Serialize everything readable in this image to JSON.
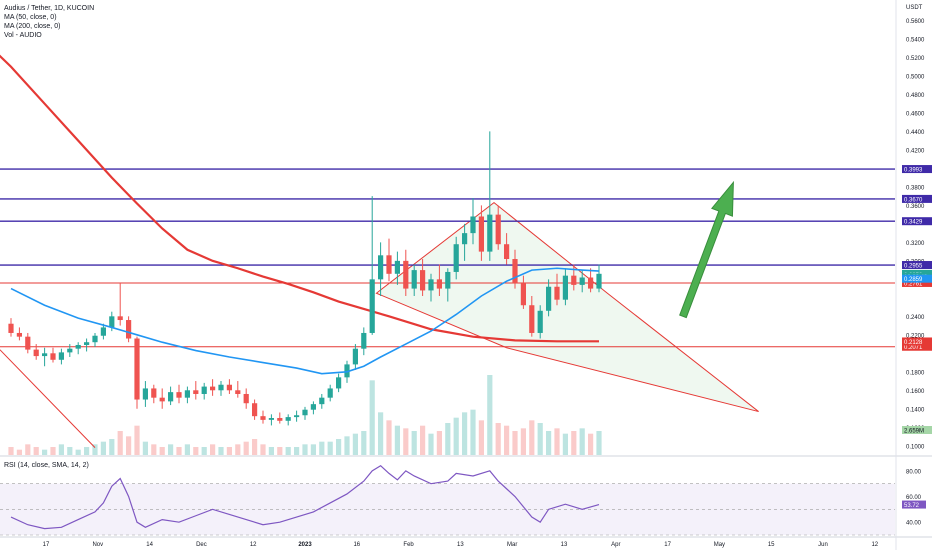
{
  "legend": {
    "title": "Audius / Tether, 1D, KUCOIN",
    "ma50": "MA (50, close, 0)",
    "ma200": "MA (200, close, 0)",
    "vol": "Vol - AUDIO"
  },
  "rsi_legend": "RSI (14, close, SMA, 14, 2)",
  "colors": {
    "up": "#26a69a",
    "down": "#ef5350",
    "ma50": "#2196f3",
    "ma200": "#e53935",
    "hline_purple": "#3f2aa8",
    "hline_red": "#e53935",
    "wedge_fill": "#e8f5e9",
    "arrow": "#4caf50",
    "rsi_line": "#7e57c2",
    "rsi_band": "#ede7f6"
  },
  "chart_data": [
    {
      "type": "candlestick",
      "title": "Audius / Tether, 1D, KUCOIN",
      "y_unit": "USDT",
      "yaxis_ticks": [
        "0.5600",
        "0.5400",
        "0.5200",
        "0.5000",
        "0.4800",
        "0.4600",
        "0.4400",
        "0.4200",
        "0.3800",
        "0.3600",
        "0.3200",
        "0.3000",
        "0.2400",
        "0.2200",
        "0.1800",
        "0.1600",
        "0.1400",
        "0.1200",
        "0.1000"
      ],
      "ylim": [
        0.09,
        0.58
      ],
      "xaxis_ticks": [
        "17",
        "Nov",
        "14",
        "Dec",
        "12",
        "2023",
        "16",
        "Feb",
        "13",
        "Mar",
        "13",
        "Apr",
        "17",
        "May",
        "15",
        "Jun",
        "12"
      ],
      "horizontal_levels": [
        {
          "value": 0.3993,
          "label": "0.3993",
          "color": "#3f2aa8"
        },
        {
          "value": 0.367,
          "label": "0.3670",
          "color": "#3f2aa8"
        },
        {
          "value": 0.3429,
          "label": "0.3429",
          "color": "#3f2aa8"
        },
        {
          "value": 0.2955,
          "label": "0.2955",
          "color": "#3f2aa8"
        },
        {
          "value": 0.2761,
          "label": "0.2761",
          "color": "#e53935"
        },
        {
          "value": 0.2071,
          "label": "0.2071",
          "color": "#e53935"
        }
      ],
      "price_labels": [
        {
          "value": 0.2859,
          "label": "0.2859",
          "color": "#26a69a"
        },
        {
          "value": 0.2833,
          "label": "10:22:43",
          "color": "#26a69a"
        },
        {
          "value": 0.2807,
          "label": "0.2859",
          "color": "#2196f3"
        },
        {
          "value": 0.2128,
          "label": "0.2128",
          "color": "#e53935"
        }
      ],
      "volume_label": "2.659M",
      "ohlc": [
        {
          "x": 0,
          "o": 0.232,
          "h": 0.238,
          "l": 0.218,
          "c": 0.222
        },
        {
          "x": 1,
          "o": 0.222,
          "h": 0.228,
          "l": 0.214,
          "c": 0.218
        },
        {
          "x": 2,
          "o": 0.218,
          "h": 0.222,
          "l": 0.2,
          "c": 0.204
        },
        {
          "x": 3,
          "o": 0.204,
          "h": 0.21,
          "l": 0.193,
          "c": 0.197
        },
        {
          "x": 4,
          "o": 0.197,
          "h": 0.206,
          "l": 0.186,
          "c": 0.2
        },
        {
          "x": 5,
          "o": 0.2,
          "h": 0.206,
          "l": 0.19,
          "c": 0.193
        },
        {
          "x": 6,
          "o": 0.193,
          "h": 0.205,
          "l": 0.188,
          "c": 0.201
        },
        {
          "x": 7,
          "o": 0.201,
          "h": 0.21,
          "l": 0.196,
          "c": 0.205
        },
        {
          "x": 8,
          "o": 0.205,
          "h": 0.212,
          "l": 0.199,
          "c": 0.209
        },
        {
          "x": 9,
          "o": 0.209,
          "h": 0.216,
          "l": 0.202,
          "c": 0.212
        },
        {
          "x": 10,
          "o": 0.212,
          "h": 0.222,
          "l": 0.207,
          "c": 0.219
        },
        {
          "x": 11,
          "o": 0.219,
          "h": 0.232,
          "l": 0.215,
          "c": 0.228
        },
        {
          "x": 12,
          "o": 0.228,
          "h": 0.245,
          "l": 0.224,
          "c": 0.24
        },
        {
          "x": 13,
          "o": 0.24,
          "h": 0.276,
          "l": 0.23,
          "c": 0.236
        },
        {
          "x": 14,
          "o": 0.236,
          "h": 0.24,
          "l": 0.212,
          "c": 0.216
        },
        {
          "x": 15,
          "o": 0.216,
          "h": 0.218,
          "l": 0.14,
          "c": 0.15
        },
        {
          "x": 16,
          "o": 0.15,
          "h": 0.17,
          "l": 0.142,
          "c": 0.162
        },
        {
          "x": 17,
          "o": 0.162,
          "h": 0.166,
          "l": 0.146,
          "c": 0.152
        },
        {
          "x": 18,
          "o": 0.152,
          "h": 0.162,
          "l": 0.14,
          "c": 0.148
        },
        {
          "x": 19,
          "o": 0.148,
          "h": 0.164,
          "l": 0.144,
          "c": 0.158
        },
        {
          "x": 20,
          "o": 0.158,
          "h": 0.166,
          "l": 0.146,
          "c": 0.152
        },
        {
          "x": 21,
          "o": 0.152,
          "h": 0.164,
          "l": 0.146,
          "c": 0.16
        },
        {
          "x": 22,
          "o": 0.16,
          "h": 0.17,
          "l": 0.15,
          "c": 0.156
        },
        {
          "x": 23,
          "o": 0.156,
          "h": 0.168,
          "l": 0.15,
          "c": 0.164
        },
        {
          "x": 24,
          "o": 0.164,
          "h": 0.172,
          "l": 0.154,
          "c": 0.16
        },
        {
          "x": 25,
          "o": 0.16,
          "h": 0.17,
          "l": 0.154,
          "c": 0.166
        },
        {
          "x": 26,
          "o": 0.166,
          "h": 0.172,
          "l": 0.156,
          "c": 0.16
        },
        {
          "x": 27,
          "o": 0.16,
          "h": 0.17,
          "l": 0.152,
          "c": 0.156
        },
        {
          "x": 28,
          "o": 0.156,
          "h": 0.162,
          "l": 0.14,
          "c": 0.146
        },
        {
          "x": 29,
          "o": 0.146,
          "h": 0.15,
          "l": 0.128,
          "c": 0.132
        },
        {
          "x": 30,
          "o": 0.132,
          "h": 0.138,
          "l": 0.124,
          "c": 0.128
        },
        {
          "x": 31,
          "o": 0.128,
          "h": 0.134,
          "l": 0.122,
          "c": 0.13
        },
        {
          "x": 32,
          "o": 0.13,
          "h": 0.136,
          "l": 0.124,
          "c": 0.127
        },
        {
          "x": 33,
          "o": 0.127,
          "h": 0.134,
          "l": 0.122,
          "c": 0.131
        },
        {
          "x": 34,
          "o": 0.131,
          "h": 0.138,
          "l": 0.126,
          "c": 0.133
        },
        {
          "x": 35,
          "o": 0.133,
          "h": 0.142,
          "l": 0.128,
          "c": 0.139
        },
        {
          "x": 36,
          "o": 0.139,
          "h": 0.148,
          "l": 0.134,
          "c": 0.145
        },
        {
          "x": 37,
          "o": 0.145,
          "h": 0.156,
          "l": 0.14,
          "c": 0.152
        },
        {
          "x": 38,
          "o": 0.152,
          "h": 0.166,
          "l": 0.148,
          "c": 0.162
        },
        {
          "x": 39,
          "o": 0.162,
          "h": 0.178,
          "l": 0.158,
          "c": 0.174
        },
        {
          "x": 40,
          "o": 0.174,
          "h": 0.192,
          "l": 0.168,
          "c": 0.188
        },
        {
          "x": 41,
          "o": 0.188,
          "h": 0.21,
          "l": 0.182,
          "c": 0.205
        },
        {
          "x": 42,
          "o": 0.205,
          "h": 0.228,
          "l": 0.198,
          "c": 0.222
        },
        {
          "x": 43,
          "o": 0.222,
          "h": 0.37,
          "l": 0.22,
          "c": 0.28
        },
        {
          "x": 44,
          "o": 0.28,
          "h": 0.32,
          "l": 0.262,
          "c": 0.306
        },
        {
          "x": 45,
          "o": 0.306,
          "h": 0.324,
          "l": 0.278,
          "c": 0.286
        },
        {
          "x": 46,
          "o": 0.286,
          "h": 0.31,
          "l": 0.274,
          "c": 0.3
        },
        {
          "x": 47,
          "o": 0.3,
          "h": 0.312,
          "l": 0.262,
          "c": 0.27
        },
        {
          "x": 48,
          "o": 0.27,
          "h": 0.296,
          "l": 0.262,
          "c": 0.29
        },
        {
          "x": 49,
          "o": 0.29,
          "h": 0.302,
          "l": 0.262,
          "c": 0.268
        },
        {
          "x": 50,
          "o": 0.268,
          "h": 0.286,
          "l": 0.256,
          "c": 0.28
        },
        {
          "x": 51,
          "o": 0.28,
          "h": 0.296,
          "l": 0.262,
          "c": 0.27
        },
        {
          "x": 52,
          "o": 0.27,
          "h": 0.292,
          "l": 0.256,
          "c": 0.288
        },
        {
          "x": 53,
          "o": 0.288,
          "h": 0.326,
          "l": 0.28,
          "c": 0.318
        },
        {
          "x": 54,
          "o": 0.318,
          "h": 0.34,
          "l": 0.3,
          "c": 0.33
        },
        {
          "x": 55,
          "o": 0.33,
          "h": 0.368,
          "l": 0.318,
          "c": 0.348
        },
        {
          "x": 56,
          "o": 0.348,
          "h": 0.36,
          "l": 0.3,
          "c": 0.31
        },
        {
          "x": 57,
          "o": 0.31,
          "h": 0.44,
          "l": 0.3,
          "c": 0.35
        },
        {
          "x": 58,
          "o": 0.35,
          "h": 0.36,
          "l": 0.312,
          "c": 0.318
        },
        {
          "x": 59,
          "o": 0.318,
          "h": 0.33,
          "l": 0.296,
          "c": 0.302
        },
        {
          "x": 60,
          "o": 0.302,
          "h": 0.312,
          "l": 0.27,
          "c": 0.276
        },
        {
          "x": 61,
          "o": 0.276,
          "h": 0.284,
          "l": 0.248,
          "c": 0.252
        },
        {
          "x": 62,
          "o": 0.252,
          "h": 0.262,
          "l": 0.218,
          "c": 0.222
        },
        {
          "x": 63,
          "o": 0.222,
          "h": 0.252,
          "l": 0.216,
          "c": 0.246
        },
        {
          "x": 64,
          "o": 0.246,
          "h": 0.28,
          "l": 0.24,
          "c": 0.272
        },
        {
          "x": 65,
          "o": 0.272,
          "h": 0.286,
          "l": 0.252,
          "c": 0.258
        },
        {
          "x": 66,
          "o": 0.258,
          "h": 0.292,
          "l": 0.252,
          "c": 0.284
        },
        {
          "x": 67,
          "o": 0.284,
          "h": 0.296,
          "l": 0.268,
          "c": 0.274
        },
        {
          "x": 68,
          "o": 0.274,
          "h": 0.29,
          "l": 0.266,
          "c": 0.282
        },
        {
          "x": 69,
          "o": 0.282,
          "h": 0.292,
          "l": 0.266,
          "c": 0.27
        },
        {
          "x": 70,
          "o": 0.27,
          "h": 0.296,
          "l": 0.266,
          "c": 0.286
        }
      ],
      "ma50": [
        [
          0,
          0.27
        ],
        [
          4,
          0.252
        ],
        [
          8,
          0.238
        ],
        [
          12,
          0.228
        ],
        [
          15,
          0.22
        ],
        [
          18,
          0.212
        ],
        [
          22,
          0.203
        ],
        [
          26,
          0.196
        ],
        [
          30,
          0.19
        ],
        [
          34,
          0.184
        ],
        [
          37,
          0.178
        ],
        [
          40,
          0.18
        ],
        [
          42,
          0.186
        ],
        [
          44,
          0.196
        ],
        [
          47,
          0.21
        ],
        [
          50,
          0.224
        ],
        [
          53,
          0.242
        ],
        [
          56,
          0.262
        ],
        [
          59,
          0.278
        ],
        [
          62,
          0.29
        ],
        [
          65,
          0.292
        ],
        [
          68,
          0.29
        ],
        [
          70,
          0.289
        ]
      ],
      "ma200": [
        [
          -4,
          0.545
        ],
        [
          0,
          0.51
        ],
        [
          4,
          0.47
        ],
        [
          8,
          0.43
        ],
        [
          12,
          0.39
        ],
        [
          15,
          0.362
        ],
        [
          18,
          0.335
        ],
        [
          21,
          0.312
        ],
        [
          24,
          0.3
        ],
        [
          27,
          0.292
        ],
        [
          30,
          0.283
        ],
        [
          33,
          0.275
        ],
        [
          36,
          0.266
        ],
        [
          39,
          0.256
        ],
        [
          42,
          0.248
        ],
        [
          45,
          0.24
        ],
        [
          50,
          0.226
        ],
        [
          55,
          0.218
        ],
        [
          60,
          0.214
        ],
        [
          65,
          0.213
        ],
        [
          70,
          0.213
        ]
      ],
      "volume": [
        3,
        2,
        4,
        3,
        2,
        3,
        4,
        3,
        2,
        3,
        4,
        5,
        6,
        9,
        7,
        11,
        5,
        4,
        3,
        4,
        3,
        4,
        3,
        3,
        4,
        3,
        3,
        4,
        5,
        6,
        4,
        3,
        3,
        3,
        3,
        4,
        4,
        5,
        5,
        6,
        7,
        8,
        9,
        28,
        16,
        13,
        11,
        10,
        9,
        11,
        8,
        9,
        12,
        14,
        16,
        17,
        13,
        30,
        12,
        11,
        9,
        10,
        13,
        12,
        9,
        10,
        8,
        9,
        10,
        8,
        9
      ],
      "annotations": {
        "wedge": {
          "points": [
            [
              43.5,
              0.265
            ],
            [
              57.5,
              0.363
            ],
            [
              71,
              0.265
            ],
            [
              89,
              0.137
            ],
            [
              59,
              0.206
            ],
            [
              43.5,
              0.265
            ]
          ]
        },
        "falling_line": {
          "from": [
            -10,
            0.285
          ],
          "to": [
            10,
            0.098
          ]
        },
        "arrow": {
          "from": [
            80,
            0.24
          ],
          "to": [
            86,
            0.385
          ]
        }
      }
    },
    {
      "type": "line",
      "title": "RSI (14, close, SMA, 14, 2)",
      "yaxis_ticks": [
        "80.00",
        "60.00",
        "40.00"
      ],
      "ylim": [
        30,
        90
      ],
      "bands": [
        70,
        50,
        30
      ],
      "value_label": "53.72",
      "series": [
        {
          "name": "RSI",
          "points": [
            [
              0,
              44
            ],
            [
              2,
              38
            ],
            [
              4,
              35
            ],
            [
              6,
              36
            ],
            [
              8,
              42
            ],
            [
              10,
              48
            ],
            [
              11,
              55
            ],
            [
              12,
              68
            ],
            [
              13,
              74
            ],
            [
              14,
              60
            ],
            [
              15,
              40
            ],
            [
              16,
              36
            ],
            [
              18,
              42
            ],
            [
              20,
              40
            ],
            [
              22,
              45
            ],
            [
              24,
              50
            ],
            [
              26,
              46
            ],
            [
              28,
              42
            ],
            [
              30,
              38
            ],
            [
              32,
              40
            ],
            [
              34,
              44
            ],
            [
              36,
              48
            ],
            [
              38,
              55
            ],
            [
              40,
              62
            ],
            [
              42,
              72
            ],
            [
              43,
              80
            ],
            [
              44,
              84
            ],
            [
              45,
              78
            ],
            [
              46,
              73
            ],
            [
              47,
              80
            ],
            [
              48,
              76
            ],
            [
              50,
              70
            ],
            [
              52,
              72
            ],
            [
              53,
              78
            ],
            [
              55,
              76
            ],
            [
              57,
              80
            ],
            [
              58,
              72
            ],
            [
              60,
              60
            ],
            [
              62,
              44
            ],
            [
              63,
              40
            ],
            [
              64,
              50
            ],
            [
              66,
              54
            ],
            [
              68,
              50
            ],
            [
              70,
              53.72
            ]
          ]
        }
      ]
    }
  ]
}
